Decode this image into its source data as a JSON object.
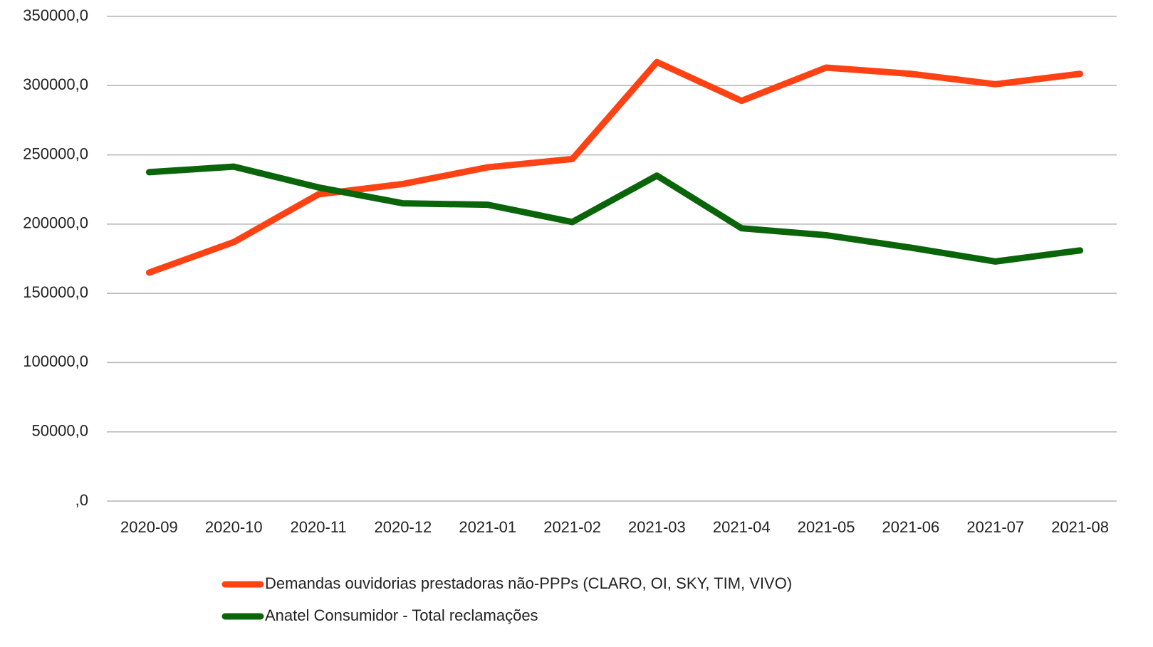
{
  "chart_data": {
    "type": "line",
    "categories": [
      "2020-09",
      "2020-10",
      "2020-11",
      "2020-12",
      "2021-01",
      "2021-02",
      "2021-03",
      "2021-04",
      "2021-05",
      "2021-06",
      "2021-07",
      "2021-08"
    ],
    "series": [
      {
        "name": "Demandas ouvidorias prestadoras não-PPPs (CLARO, OI, SKY, TIM, VIVO)",
        "color": "#ff4214",
        "values": [
          165000,
          187000,
          221500,
          229000,
          241000,
          247000,
          317000,
          289000,
          313000,
          308500,
          301000,
          308500
        ]
      },
      {
        "name": "Anatel Consumidor - Total reclamações",
        "color": "#0a650a",
        "values": [
          237500,
          241500,
          226500,
          215000,
          214000,
          201500,
          235000,
          197000,
          192000,
          183000,
          173000,
          181000
        ]
      }
    ],
    "ylim": [
      0,
      350000
    ],
    "yticks": [
      {
        "value": 0,
        "label": ",0"
      },
      {
        "value": 50000,
        "label": "50000,0"
      },
      {
        "value": 100000,
        "label": "100000,0"
      },
      {
        "value": 150000,
        "label": "150000,0"
      },
      {
        "value": 200000,
        "label": "200000,0"
      },
      {
        "value": 250000,
        "label": "250000,0"
      },
      {
        "value": 300000,
        "label": "300000,0"
      },
      {
        "value": 350000,
        "label": "350000,0"
      }
    ],
    "grid": true,
    "legend": "bottom"
  }
}
